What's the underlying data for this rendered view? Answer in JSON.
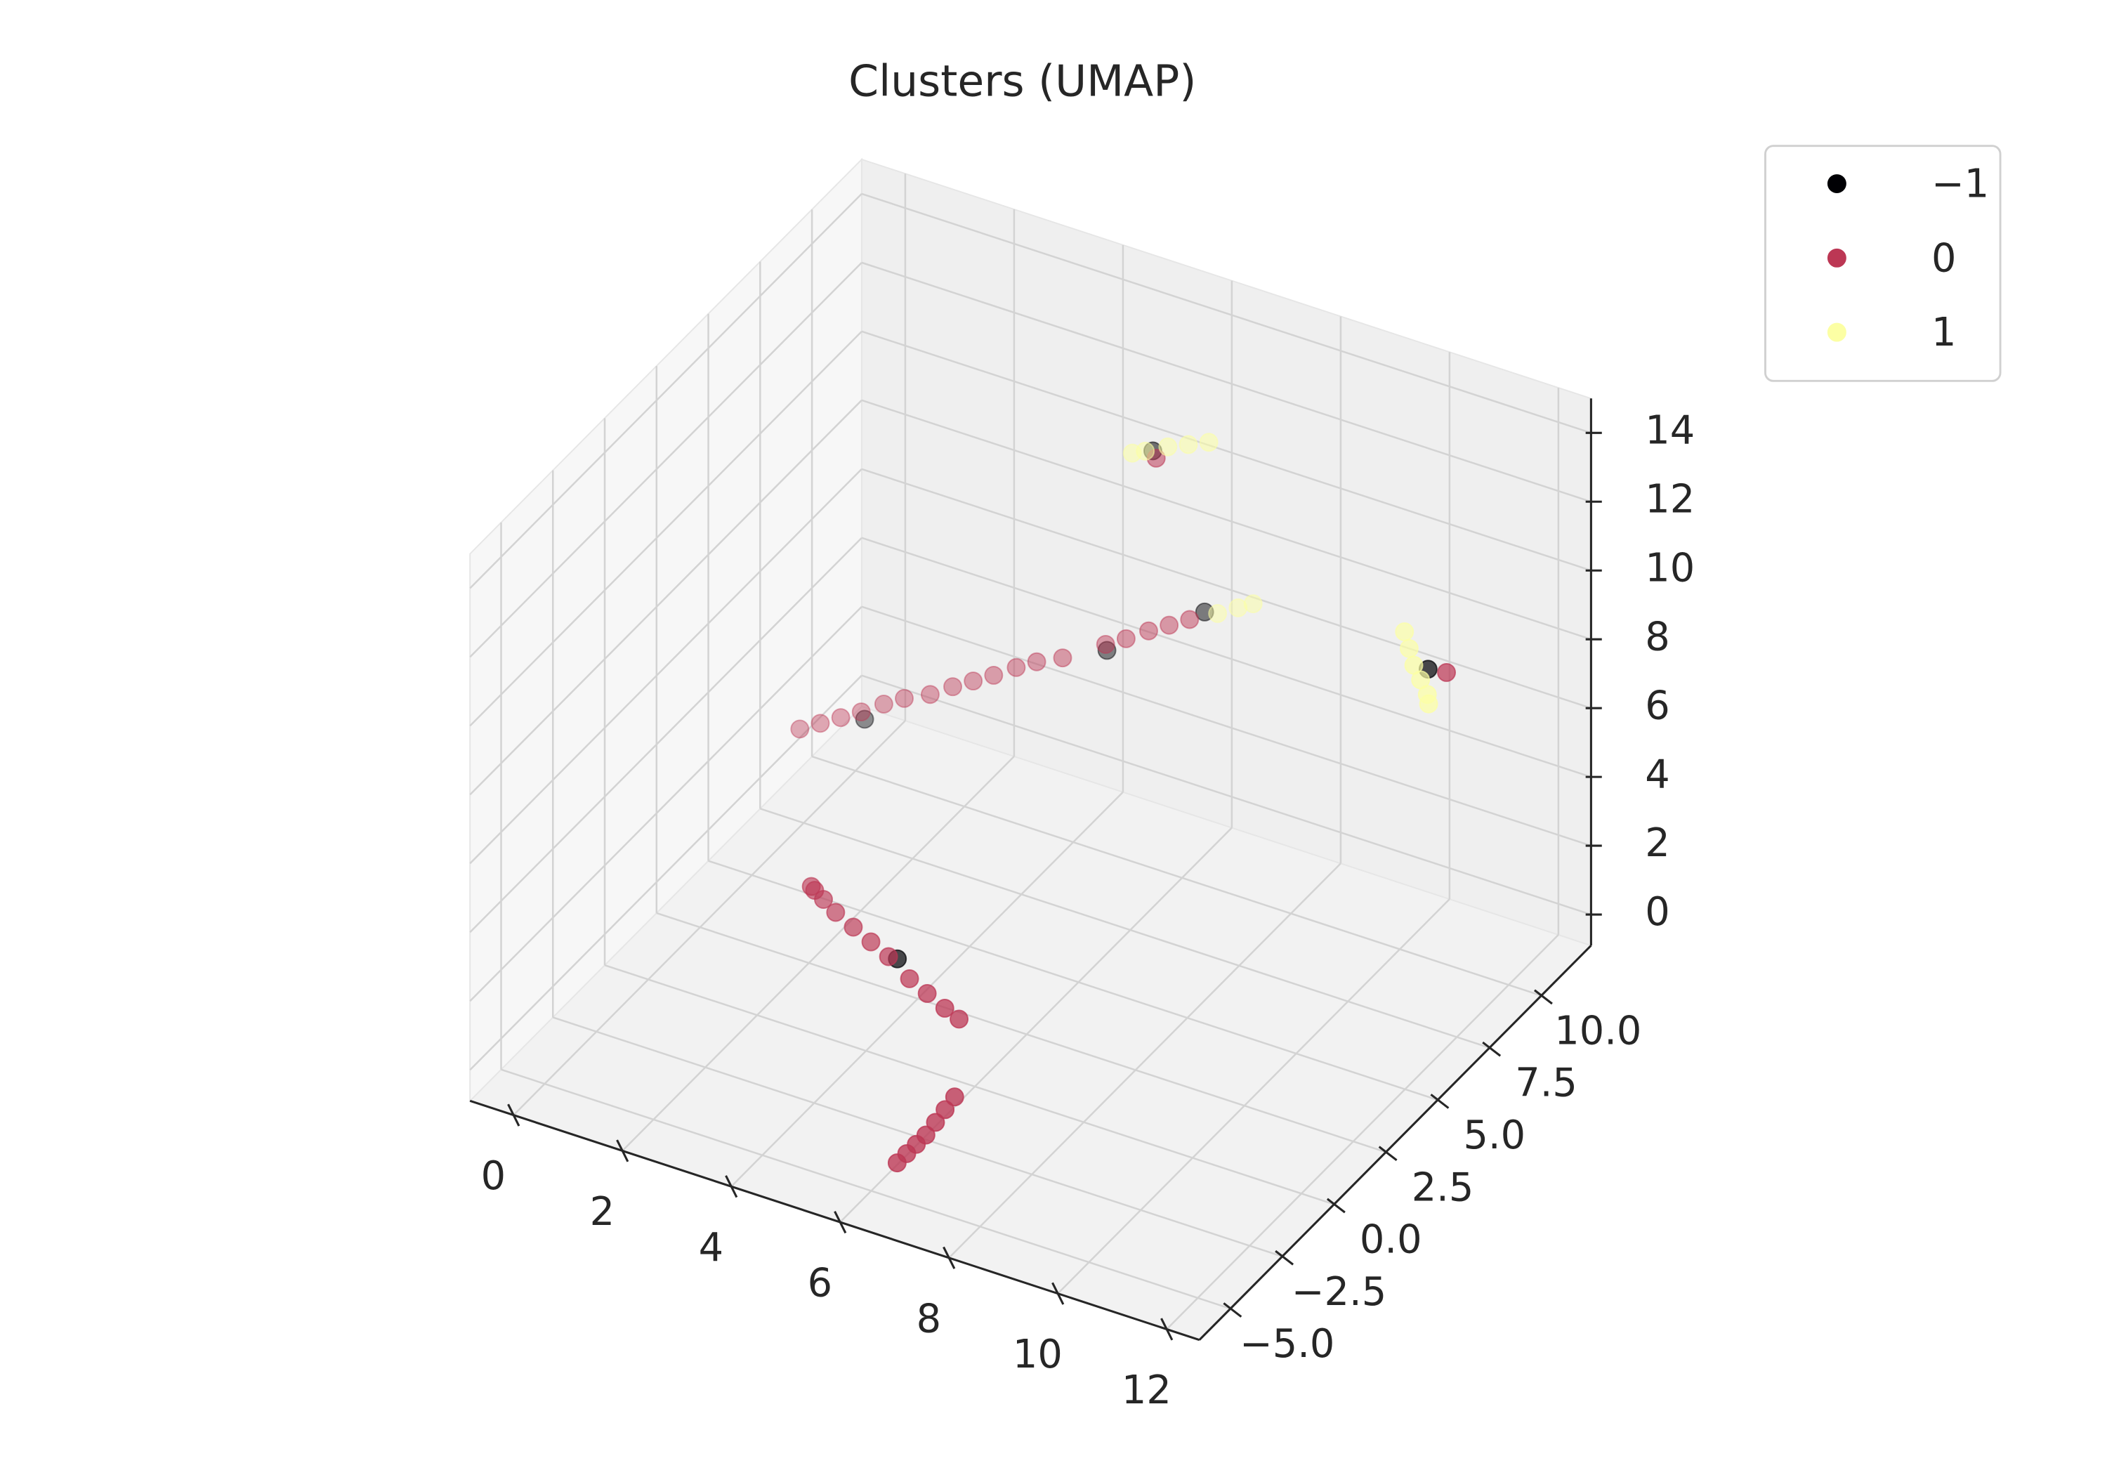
{
  "chart_data": {
    "type": "scatter3d",
    "title": "Clusters (UMAP)",
    "xlim": [
      -0.8,
      12.6
    ],
    "ylim": [
      -6.5,
      12.4
    ],
    "zlim": [
      -0.9,
      15
    ],
    "xticks": [
      0,
      2,
      4,
      6,
      8,
      10,
      12
    ],
    "yticks": [
      {
        "value": -5,
        "label": "−5.0"
      },
      {
        "value": -2.5,
        "label": "−2.5"
      },
      {
        "value": 0,
        "label": "0.0"
      },
      {
        "value": 2.5,
        "label": "2.5"
      },
      {
        "value": 5,
        "label": "5.0"
      },
      {
        "value": 7.5,
        "label": "7.5"
      },
      {
        "value": 10,
        "label": "10.0"
      }
    ],
    "zticks": [
      0,
      2,
      4,
      6,
      8,
      10,
      12,
      14
    ],
    "grid": true,
    "depthshade": true,
    "legend": "outside-upper-right",
    "series": [
      {
        "name": "−1",
        "color": "#000004",
        "x": [
          6.3,
          1.5,
          5.0,
          6.3,
          11.7,
          5.3
        ],
        "y": [
          7.8,
          6.5,
          9.0,
          10.3,
          6.9,
          -1.9
        ],
        "z": [
          13.0,
          3.5,
          5.8,
          6.8,
          10.0,
          3.6
        ]
      },
      {
        "name": "0",
        "color": "#bc3754",
        "x": [
          0.5,
          0.8,
          1.1,
          1.4,
          1.7,
          2.0,
          2.4,
          2.7,
          3.0,
          3.3,
          3.6,
          3.9,
          4.3,
          4.9,
          5.2,
          5.5,
          5.8,
          6.1,
          3.3,
          3.4,
          3.6,
          3.9,
          4.3,
          4.7,
          5.1,
          5.6,
          6.0,
          6.4,
          6.7,
          6.4,
          6.5,
          6.6,
          6.7,
          6.8,
          6.9,
          7.0,
          6.4,
          12.0
        ],
        "y": [
          6.0,
          6.2,
          6.4,
          6.6,
          6.9,
          7.1,
          7.3,
          7.6,
          7.8,
          8.0,
          8.3,
          8.5,
          8.7,
          9.2,
          9.4,
          9.7,
          9.9,
          10.1,
          -0.8,
          -0.9,
          -1.0,
          -1.2,
          -1.4,
          -1.6,
          -1.8,
          -2.1,
          -2.3,
          -2.5,
          -2.6,
          -4.8,
          -4.6,
          -4.4,
          -4.2,
          -4.0,
          -3.8,
          -3.6,
          7.7,
          7.0
        ],
        "z": [
          3.0,
          3.2,
          3.4,
          3.6,
          3.8,
          4.0,
          4.2,
          4.4,
          4.6,
          4.8,
          5.0,
          5.2,
          5.4,
          5.8,
          6.0,
          6.2,
          6.4,
          6.6,
          4.0,
          4.0,
          3.9,
          3.8,
          3.7,
          3.6,
          3.5,
          3.3,
          3.2,
          3.1,
          3.0,
          0.0,
          0.2,
          0.4,
          0.6,
          0.9,
          1.2,
          1.5,
          12.9,
          10.0
        ]
      },
      {
        "name": "1",
        "color": "#fcffa4",
        "x": [
          6.5,
          6.8,
          7.0,
          6.0,
          6.2,
          6.5,
          6.8,
          7.1,
          11.0,
          11.2,
          11.4,
          11.6,
          11.8,
          11.9
        ],
        "y": [
          10.4,
          10.6,
          10.8,
          7.6,
          7.7,
          8.0,
          8.2,
          8.4,
          7.6,
          7.3,
          7.0,
          6.8,
          6.6,
          6.4
        ],
        "z": [
          6.8,
          7.0,
          7.1,
          12.9,
          13.0,
          13.1,
          13.2,
          13.3,
          10.3,
          10.1,
          9.9,
          9.7,
          9.5,
          9.4
        ]
      }
    ]
  }
}
